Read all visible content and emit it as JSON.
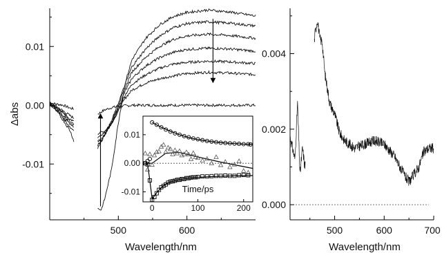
{
  "chart_data": [
    {
      "type": "line",
      "panel": "left",
      "xlabel": "Wavelength/nm",
      "ylabel": "Δabs",
      "xlim": [
        400,
        700
      ],
      "ylim": [
        -0.0195,
        0.0165
      ],
      "xticks": [
        500,
        600
      ],
      "yticks": [
        -0.01,
        0.0,
        0.01
      ],
      "ytick_labels": [
        "-0.01",
        "0.00",
        "0.01"
      ],
      "gaps": [
        [
          435,
          470
        ]
      ],
      "annotations": [
        {
          "type": "arrow",
          "direction": "up",
          "wavelength": 474,
          "from": -0.0172,
          "to": -0.0018
        },
        {
          "type": "arrow",
          "direction": "down",
          "wavelength": 638,
          "from": 0.0147,
          "to": 0.0042
        }
      ],
      "series": [
        {
          "points": [
            [
              400,
              0.0004
            ],
            [
              410,
              0.0002
            ],
            [
              420,
              0.0
            ],
            [
              430,
              -0.0005
            ],
            [
              470,
              -0.0015
            ],
            [
              480,
              -0.0008
            ],
            [
              490,
              -0.0004
            ],
            [
              500,
              -0.0002
            ],
            [
              520,
              0.0
            ],
            [
              560,
              0.0
            ],
            [
              600,
              0.0
            ],
            [
              650,
              0.0
            ],
            [
              700,
              0.0
            ]
          ]
        },
        {
          "points": [
            [
              400,
              0.0004
            ],
            [
              410,
              -0.0002
            ],
            [
              420,
              -0.001
            ],
            [
              430,
              -0.0018
            ],
            [
              470,
              -0.0048
            ],
            [
              475,
              -0.0046
            ],
            [
              480,
              -0.0044
            ],
            [
              490,
              -0.003
            ],
            [
              500,
              -0.001
            ],
            [
              510,
              0.0012
            ],
            [
              520,
              0.0026
            ],
            [
              540,
              0.0038
            ],
            [
              560,
              0.0045
            ],
            [
              580,
              0.005
            ],
            [
              600,
              0.0054
            ],
            [
              630,
              0.0056
            ],
            [
              660,
              0.0055
            ],
            [
              700,
              0.0052
            ]
          ]
        },
        {
          "points": [
            [
              400,
              0.0003
            ],
            [
              410,
              -0.0003
            ],
            [
              420,
              -0.0013
            ],
            [
              430,
              -0.0024
            ],
            [
              470,
              -0.0055
            ],
            [
              475,
              -0.0052
            ],
            [
              480,
              -0.0048
            ],
            [
              490,
              -0.0032
            ],
            [
              500,
              -0.0008
            ],
            [
              510,
              0.0018
            ],
            [
              520,
              0.0036
            ],
            [
              540,
              0.0052
            ],
            [
              560,
              0.0063
            ],
            [
              580,
              0.007
            ],
            [
              600,
              0.0073
            ],
            [
              630,
              0.0075
            ],
            [
              660,
              0.0074
            ],
            [
              700,
              0.0071
            ]
          ]
        },
        {
          "points": [
            [
              400,
              0.0003
            ],
            [
              410,
              -0.0004
            ],
            [
              420,
              -0.0015
            ],
            [
              430,
              -0.0028
            ],
            [
              470,
              -0.0062
            ],
            [
              475,
              -0.0057
            ],
            [
              480,
              -0.005
            ],
            [
              490,
              -0.0032
            ],
            [
              500,
              -0.0004
            ],
            [
              510,
              0.0024
            ],
            [
              520,
              0.0046
            ],
            [
              540,
              0.0067
            ],
            [
              560,
              0.0081
            ],
            [
              580,
              0.009
            ],
            [
              600,
              0.0095
            ],
            [
              630,
              0.0097
            ],
            [
              660,
              0.0096
            ],
            [
              700,
              0.0092
            ]
          ]
        },
        {
          "points": [
            [
              400,
              0.0002
            ],
            [
              410,
              -0.0006
            ],
            [
              420,
              -0.0018
            ],
            [
              430,
              -0.0032
            ],
            [
              470,
              -0.0068
            ],
            [
              475,
              -0.006
            ],
            [
              480,
              -0.005
            ],
            [
              490,
              -0.003
            ],
            [
              500,
              0.0
            ],
            [
              510,
              0.003
            ],
            [
              520,
              0.0057
            ],
            [
              540,
              0.0082
            ],
            [
              560,
              0.01
            ],
            [
              580,
              0.0112
            ],
            [
              600,
              0.0118
            ],
            [
              630,
              0.0121
            ],
            [
              660,
              0.0119
            ],
            [
              700,
              0.0114
            ]
          ]
        },
        {
          "points": [
            [
              400,
              0.0002
            ],
            [
              410,
              -0.0008
            ],
            [
              420,
              -0.0022
            ],
            [
              430,
              -0.0038
            ],
            [
              470,
              -0.0072
            ],
            [
              475,
              -0.0062
            ],
            [
              480,
              -0.005
            ],
            [
              490,
              -0.0027
            ],
            [
              500,
              0.0004
            ],
            [
              510,
              0.0036
            ],
            [
              520,
              0.0066
            ],
            [
              540,
              0.0096
            ],
            [
              560,
              0.0118
            ],
            [
              580,
              0.0132
            ],
            [
              600,
              0.0139
            ],
            [
              630,
              0.0142
            ],
            [
              660,
              0.014
            ],
            [
              700,
              0.0135
            ]
          ]
        },
        {
          "points": [
            [
              400,
              0.0002
            ],
            [
              410,
              -0.001
            ],
            [
              420,
              -0.0026
            ],
            [
              430,
              -0.0044
            ],
            [
              470,
              -0.0176
            ],
            [
              475,
              -0.0178
            ],
            [
              480,
              -0.016
            ],
            [
              490,
              -0.011
            ],
            [
              500,
              -0.003
            ],
            [
              510,
              0.0038
            ],
            [
              520,
              0.0078
            ],
            [
              540,
              0.0114
            ],
            [
              560,
              0.0137
            ],
            [
              580,
              0.0151
            ],
            [
              600,
              0.0158
            ],
            [
              630,
              0.0162
            ],
            [
              660,
              0.0159
            ],
            [
              700,
              0.0152
            ]
          ]
        }
      ]
    },
    {
      "type": "scatter",
      "panel": "inset",
      "xlabel": "Time/ps",
      "xlim": [
        -20,
        220
      ],
      "ylim": [
        -0.0135,
        0.0165
      ],
      "xticks": [
        0,
        100,
        200
      ],
      "yticks": [
        -0.01,
        0.0,
        0.01
      ],
      "ytick_labels": [
        "-0.01",
        "0.00",
        "0.01"
      ],
      "series": [
        {
          "marker": "circle",
          "x": [
            -15,
            -10,
            -5,
            0,
            10,
            20,
            30,
            40,
            50,
            60,
            70,
            80,
            90,
            100,
            110,
            120,
            130,
            140,
            150,
            160,
            170,
            180,
            190,
            200,
            210,
            215
          ],
          "y": [
            0.0,
            0.0008,
            0.0015,
            0.0143,
            0.0135,
            0.0126,
            0.0118,
            0.0111,
            0.0105,
            0.01,
            0.0095,
            0.0091,
            0.0087,
            0.0084,
            0.0081,
            0.0078,
            0.0076,
            0.0074,
            0.0072,
            0.0071,
            0.007,
            0.0069,
            0.0068,
            0.0067,
            0.0067,
            0.0066
          ]
        },
        {
          "marker": "triangle",
          "x": [
            -15,
            -10,
            -5,
            0,
            5,
            10,
            15,
            20,
            25,
            30,
            35,
            40,
            45,
            50,
            55,
            60,
            65,
            70,
            75,
            80,
            85,
            90,
            95,
            100,
            110,
            120,
            130,
            140,
            150,
            160,
            170,
            180,
            190,
            200,
            210
          ],
          "y": [
            0.0035,
            -0.0022,
            0.0032,
            -0.0005,
            0.0028,
            0.004,
            0.0042,
            0.0058,
            0.0065,
            0.004,
            0.0055,
            0.005,
            0.0032,
            0.0046,
            0.0035,
            0.0043,
            0.0028,
            0.0032,
            0.0039,
            0.0031,
            0.0015,
            0.0036,
            0.0022,
            0.0019,
            0.001,
            0.0016,
            0.0,
            0.0022,
            -0.0006,
            0.0005,
            -0.0013,
            -0.0004,
            0.0008,
            -0.0026,
            -0.0032
          ]
        },
        {
          "marker": "square",
          "x": [
            -15,
            -10,
            -5,
            0,
            5,
            10,
            15,
            20,
            25,
            30,
            35,
            40,
            45,
            50,
            55,
            60,
            65,
            70,
            75,
            80,
            85,
            90,
            95,
            100,
            110,
            120,
            130,
            140,
            150,
            160,
            170,
            180,
            190,
            200,
            210
          ],
          "y": [
            0.0,
            -0.0004,
            -0.006,
            -0.0128,
            -0.0118,
            -0.0105,
            -0.0093,
            -0.0084,
            -0.0079,
            -0.0074,
            -0.0068,
            -0.0064,
            -0.0063,
            -0.0061,
            -0.0058,
            -0.0058,
            -0.0055,
            -0.0055,
            -0.0052,
            -0.0052,
            -0.005,
            -0.0049,
            -0.0049,
            -0.0048,
            -0.0046,
            -0.0046,
            -0.0045,
            -0.0044,
            -0.0044,
            -0.0043,
            -0.0044,
            -0.0044,
            -0.0042,
            -0.0041,
            -0.0042
          ]
        }
      ],
      "fits": [
        {
          "x": [
            0,
            20,
            40,
            60,
            80,
            100,
            120,
            140,
            160,
            180,
            200,
            220
          ],
          "y": [
            0.0143,
            0.0126,
            0.0112,
            0.01,
            0.009,
            0.0083,
            0.0078,
            0.0074,
            0.0071,
            0.0069,
            0.0067,
            0.0066
          ]
        },
        {
          "x": [
            -10,
            -5,
            0,
            10,
            20,
            30,
            40,
            60,
            80,
            100,
            140,
            180,
            220
          ],
          "y": [
            0.0,
            -0.006,
            -0.0125,
            -0.0103,
            -0.0085,
            -0.0073,
            -0.0065,
            -0.0057,
            -0.0052,
            -0.0049,
            -0.0046,
            -0.0044,
            -0.0043
          ]
        },
        {
          "x": [
            -15,
            0,
            30,
            60,
            100,
            150,
            220
          ],
          "y": [
            0.0,
            0.0,
            0.0035,
            0.0038,
            0.0022,
            0.0004,
            -0.0018
          ]
        }
      ]
    },
    {
      "type": "line",
      "panel": "right",
      "xlabel": "Wavelength/nm",
      "xlim": [
        410,
        700
      ],
      "ylim": [
        -0.0004,
        0.0052
      ],
      "xticks": [
        500,
        600,
        700
      ],
      "yticks": [
        0.0,
        0.002,
        0.004
      ],
      "ytick_labels": [
        "0.000",
        "0.002",
        "0.004"
      ],
      "baseline": 0.0,
      "series": [
        {
          "points": [
            [
              410,
              0.0018
            ],
            [
              420,
              0.0012
            ],
            [
              425,
              0.0027
            ],
            [
              430,
              0.0008
            ],
            [
              435,
              0.0015
            ],
            [
              440,
              0.001
            ],
            [
              460,
              0.0045
            ],
            [
              465,
              0.0049
            ],
            [
              470,
              0.0044
            ],
            [
              475,
              0.0043
            ],
            [
              480,
              0.0035
            ],
            [
              490,
              0.0027
            ],
            [
              500,
              0.0024
            ],
            [
              510,
              0.0019
            ],
            [
              520,
              0.0017
            ],
            [
              540,
              0.0015
            ],
            [
              560,
              0.0016
            ],
            [
              580,
              0.0017
            ],
            [
              600,
              0.0016
            ],
            [
              620,
              0.0013
            ],
            [
              640,
              0.0008
            ],
            [
              650,
              0.0006
            ],
            [
              660,
              0.0008
            ],
            [
              670,
              0.001
            ],
            [
              680,
              0.0014
            ],
            [
              690,
              0.0015
            ],
            [
              700,
              0.0015
            ]
          ]
        }
      ]
    }
  ]
}
